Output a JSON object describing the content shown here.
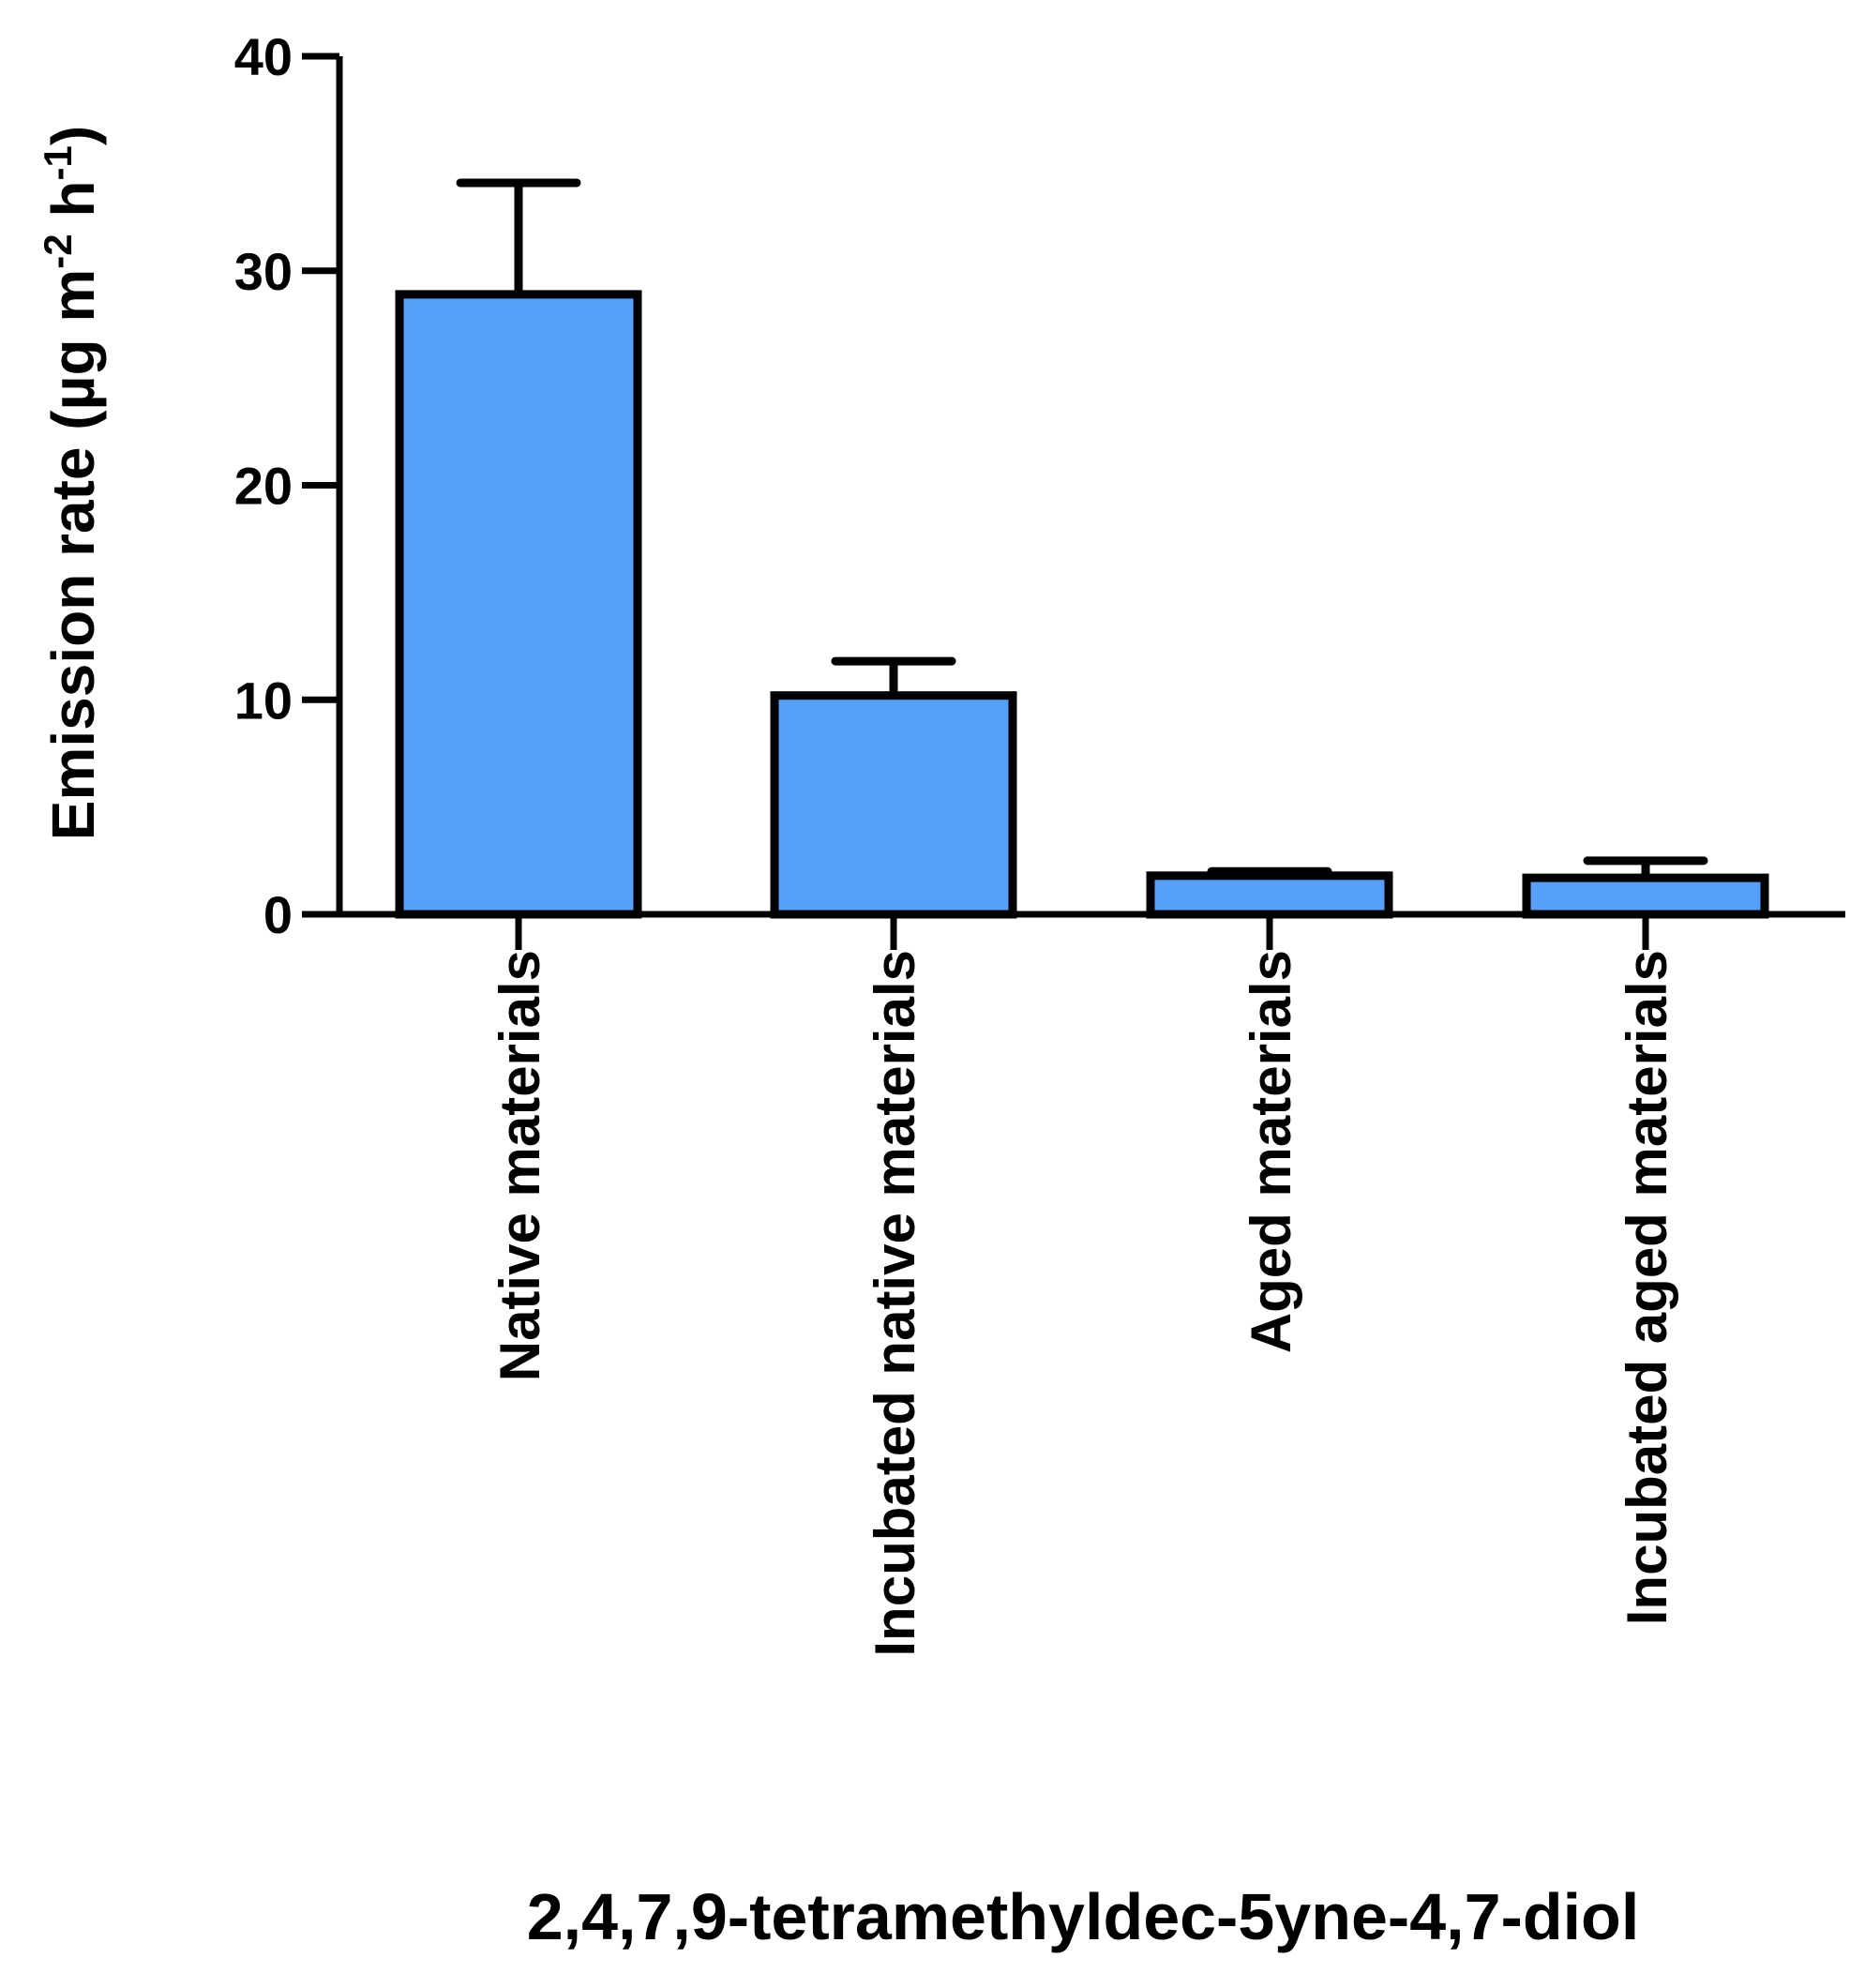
{
  "chart_data": {
    "type": "bar",
    "categories": [
      "Native materials",
      "Incubated native materials",
      "Aged materials",
      "Incubated aged materials"
    ],
    "values": [
      28.9,
      10.2,
      1.8,
      1.7
    ],
    "errors": [
      5.2,
      1.6,
      0.2,
      0.8
    ],
    "xlabel": "2,4,7,9-tetramethyldec-5yne-4,7-diol",
    "ylabel": {
      "main": "Emission rate (µg m",
      "sup1": "-2",
      "mid": " h",
      "sup2": "-1",
      "end": ")"
    },
    "ylim": [
      0,
      40
    ],
    "yticks": [
      0,
      10,
      20,
      30,
      40
    ],
    "bar_color": "#569ffb",
    "grid": false,
    "legend": "none"
  }
}
